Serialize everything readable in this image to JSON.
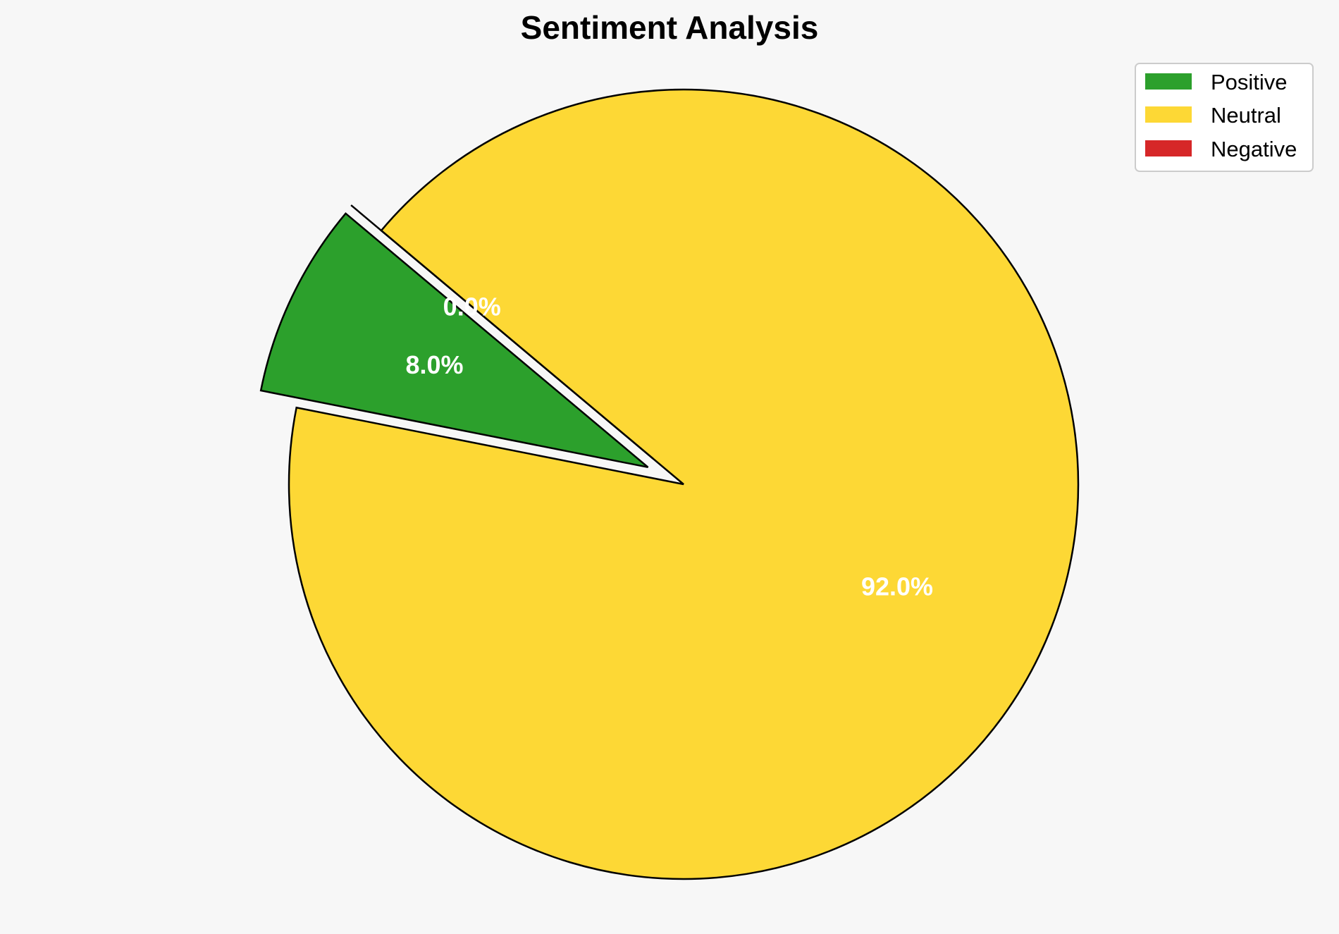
{
  "chart_data": {
    "type": "pie",
    "title": "Sentiment Analysis",
    "categories": [
      "Positive",
      "Neutral",
      "Negative"
    ],
    "values": [
      8.0,
      92.0,
      0.0
    ],
    "labels": [
      "8.0%",
      "92.0%",
      "0.0%"
    ],
    "colors": [
      "#2ca02c",
      "#fdd835",
      "#d62728"
    ],
    "start_angle_deg": 140,
    "direction": "counterclockwise",
    "exploded": [
      "Positive",
      "Negative"
    ],
    "legend_position": "top-right"
  }
}
